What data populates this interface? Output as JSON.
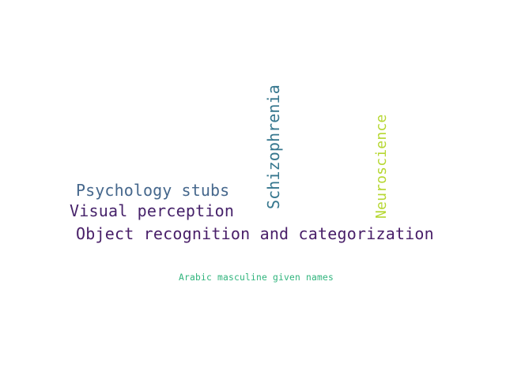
{
  "words": {
    "psychology_stubs": {
      "text": "Psychology stubs",
      "color": "#45678c"
    },
    "visual_perception": {
      "text": "Visual perception",
      "color": "#46226a"
    },
    "object_recognition": {
      "text": "Object recognition and categorization",
      "color": "#481e68"
    },
    "schizophrenia": {
      "text": "Schizophrenia",
      "color": "#36778e"
    },
    "neuroscience": {
      "text": "Neuroscience",
      "color": "#b6d732"
    },
    "arabic_names": {
      "text": "Arabic masculine given names",
      "color": "#2fb47c"
    }
  }
}
